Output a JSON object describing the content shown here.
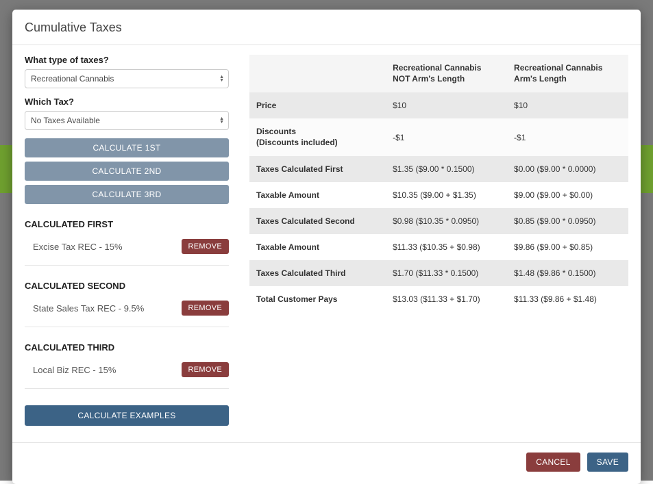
{
  "modal": {
    "title": "Cumulative Taxes"
  },
  "form": {
    "type_label": "What type of taxes?",
    "type_value": "Recreational Cannabis",
    "which_label": "Which Tax?",
    "which_value": "No Taxes Available"
  },
  "buttons": {
    "calc1": "CALCULATE 1ST",
    "calc2": "CALCULATE 2ND",
    "calc3": "CALCULATE 3RD",
    "examples": "CALCULATE EXAMPLES",
    "remove": "REMOVE",
    "cancel": "CANCEL",
    "save": "SAVE"
  },
  "sections": {
    "first": {
      "header": "CALCULATED FIRST",
      "item": "Excise Tax REC - 15%"
    },
    "second": {
      "header": "CALCULATED SECOND",
      "item": "State Sales Tax REC - 9.5%"
    },
    "third": {
      "header": "CALCULATED THIRD",
      "item": "Local Biz REC - 15%"
    }
  },
  "table": {
    "head": {
      "col1": "",
      "col2a": "Recreational Cannabis",
      "col2b": "NOT Arm's Length",
      "col3a": "Recreational Cannabis",
      "col3b": "Arm's Length"
    },
    "rows": {
      "price": {
        "label": "Price",
        "v1": "$10",
        "v2": "$10"
      },
      "discounts": {
        "label": "Discounts",
        "sub": "(Discounts included)",
        "v1": "-$1",
        "v2": "-$1"
      },
      "tcf": {
        "label": "Taxes Calculated First",
        "v1": "$1.35 ($9.00 * 0.1500)",
        "v2": "$0.00 ($9.00 * 0.0000)"
      },
      "ta1": {
        "label": "Taxable Amount",
        "v1": "$10.35 ($9.00 + $1.35)",
        "v2": "$9.00 ($9.00 + $0.00)"
      },
      "tcs": {
        "label": "Taxes Calculated Second",
        "v1": "$0.98 ($10.35 * 0.0950)",
        "v2": "$0.85 ($9.00 * 0.0950)"
      },
      "ta2": {
        "label": "Taxable Amount",
        "v1": "$11.33 ($10.35 + $0.98)",
        "v2": "$9.86 ($9.00 + $0.85)"
      },
      "tct": {
        "label": "Taxes Calculated Third",
        "v1": "$1.70 ($11.33 * 0.1500)",
        "v2": "$1.48 ($9.86 * 0.1500)"
      },
      "total": {
        "label": "Total Customer Pays",
        "v1": "$13.03 ($11.33 + $1.70)",
        "v2": "$11.33 ($9.86 + $1.48)"
      }
    }
  }
}
